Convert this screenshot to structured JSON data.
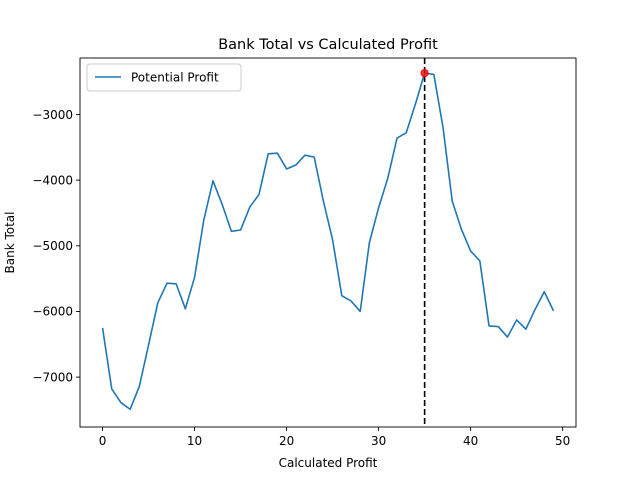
{
  "chart_data": {
    "type": "line",
    "title": "Bank Total vs Calculated Profit",
    "xlabel": "Calculated Profit",
    "ylabel": "Bank Total",
    "xlim": [
      -2.45,
      51.45
    ],
    "ylim": [
      -7760,
      -2140
    ],
    "xticks": [
      0,
      10,
      20,
      30,
      40,
      50
    ],
    "yticks": [
      -7000,
      -6000,
      -5000,
      -4000,
      -3000
    ],
    "ytick_labels": [
      "−7000",
      "−6000",
      "−5000",
      "−4000",
      "−3000"
    ],
    "grid": false,
    "legend_position": "upper-left",
    "series": [
      {
        "name": "Potential Profit",
        "color": "#1f77b4",
        "x": [
          0,
          1,
          2,
          3,
          4,
          5,
          6,
          7,
          8,
          9,
          10,
          11,
          12,
          13,
          14,
          15,
          16,
          17,
          18,
          19,
          20,
          21,
          22,
          23,
          24,
          25,
          26,
          27,
          28,
          29,
          30,
          31,
          32,
          33,
          34,
          35,
          36,
          37,
          38,
          39,
          40,
          41,
          42,
          43,
          44,
          45,
          46,
          47,
          48,
          49
        ],
        "y": [
          -6250,
          -7180,
          -7390,
          -7490,
          -7140,
          -6510,
          -5870,
          -5570,
          -5580,
          -5960,
          -5480,
          -4610,
          -4010,
          -4370,
          -4780,
          -4760,
          -4410,
          -4220,
          -3600,
          -3590,
          -3830,
          -3770,
          -3620,
          -3650,
          -4320,
          -4910,
          -5760,
          -5840,
          -6000,
          -4950,
          -4420,
          -3970,
          -3360,
          -3280,
          -2840,
          -2370,
          -2390,
          -3200,
          -4320,
          -4750,
          -5080,
          -5230,
          -6220,
          -6230,
          -6390,
          -6130,
          -6270,
          -5970,
          -5700,
          -5990
        ]
      }
    ],
    "marker": {
      "x": 35,
      "y": -2370,
      "color": "#ff0000"
    },
    "vline": {
      "x": 35,
      "color": "#000000",
      "style": "dashed"
    }
  }
}
